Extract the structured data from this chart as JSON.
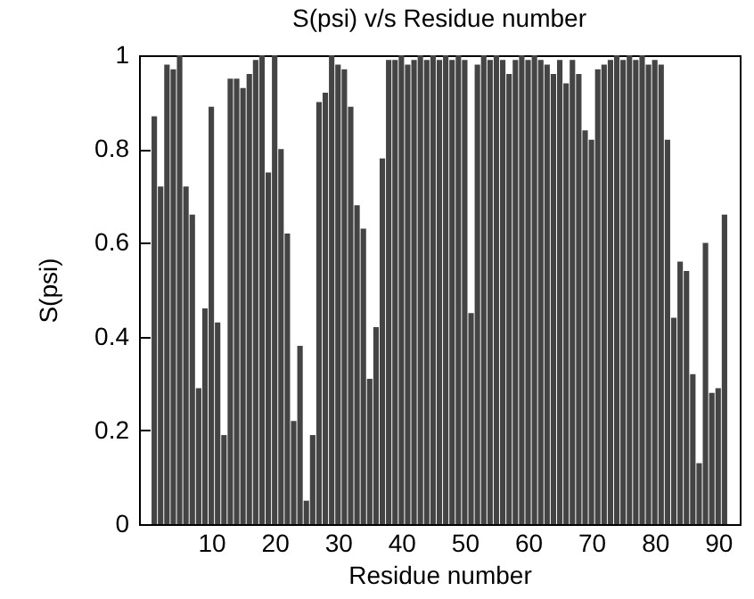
{
  "chart_data": {
    "type": "bar",
    "title": "S(psi) v/s Residue number",
    "xlabel": "Residue number",
    "ylabel": "S(psi)",
    "x": [
      1,
      2,
      3,
      4,
      5,
      6,
      7,
      8,
      9,
      10,
      11,
      12,
      13,
      14,
      15,
      16,
      17,
      18,
      19,
      20,
      21,
      22,
      23,
      24,
      25,
      26,
      27,
      28,
      29,
      30,
      31,
      32,
      33,
      34,
      35,
      36,
      37,
      38,
      39,
      40,
      41,
      42,
      43,
      44,
      45,
      46,
      47,
      48,
      49,
      50,
      51,
      52,
      53,
      54,
      55,
      56,
      57,
      58,
      59,
      60,
      61,
      62,
      63,
      64,
      65,
      66,
      67,
      68,
      69,
      70,
      71,
      72,
      73,
      74,
      75,
      76,
      77,
      78,
      79,
      80,
      81,
      82,
      83,
      84,
      85,
      86,
      87,
      88,
      89,
      90,
      91
    ],
    "values": [
      0.87,
      0.72,
      0.98,
      0.97,
      1.0,
      0.72,
      0.66,
      0.29,
      0.46,
      0.89,
      0.43,
      0.19,
      0.95,
      0.95,
      0.93,
      0.96,
      0.99,
      1.0,
      0.75,
      1.0,
      0.8,
      0.62,
      0.22,
      0.38,
      0.05,
      0.19,
      0.9,
      0.92,
      1.0,
      0.98,
      0.97,
      0.89,
      0.68,
      0.63,
      0.31,
      0.42,
      0.78,
      0.99,
      0.99,
      1.0,
      0.98,
      0.99,
      1.0,
      0.99,
      1.0,
      0.99,
      1.0,
      0.99,
      1.0,
      0.99,
      0.45,
      0.98,
      1.0,
      0.99,
      1.0,
      0.99,
      0.96,
      0.99,
      1.0,
      0.99,
      1.0,
      0.99,
      0.98,
      0.96,
      0.99,
      0.94,
      0.99,
      0.96,
      0.84,
      0.82,
      0.97,
      0.98,
      0.99,
      1.0,
      0.99,
      1.0,
      0.99,
      1.0,
      0.98,
      0.99,
      0.98,
      0.82,
      0.44,
      0.56,
      0.54,
      0.32,
      0.13,
      0.6,
      0.28,
      0.29,
      0.66
    ],
    "color": "#444444",
    "xlim": [
      0,
      92
    ],
    "xticks": [
      10,
      20,
      30,
      40,
      50,
      60,
      70,
      80,
      90
    ],
    "ylim": [
      0,
      1
    ],
    "yticks": [
      0,
      0.2,
      0.4,
      0.6,
      0.8,
      1
    ]
  }
}
